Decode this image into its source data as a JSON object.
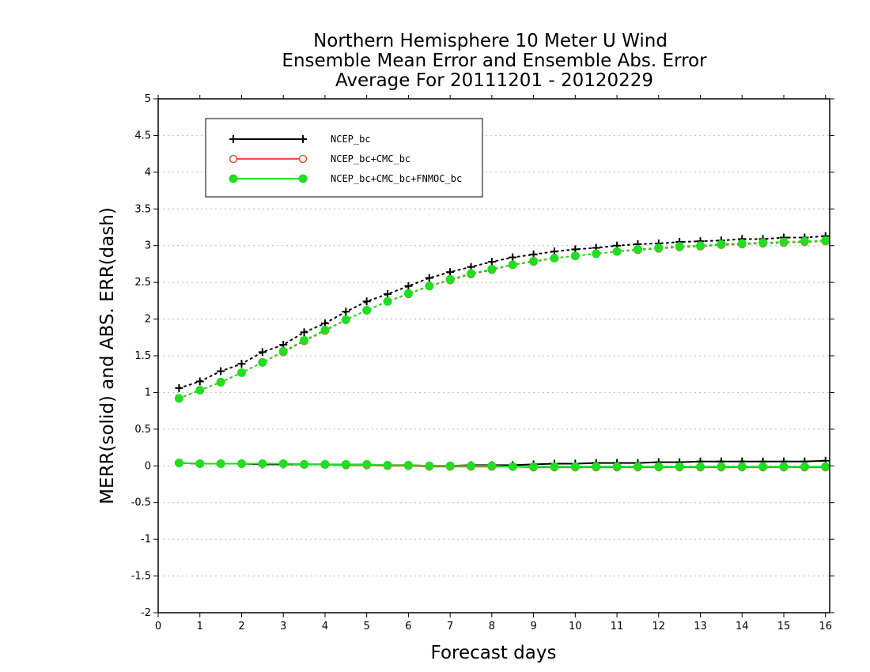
{
  "chart_data": {
    "type": "line",
    "title_lines": [
      "Northern Hemisphere 10 Meter U Wind",
      "Ensemble Mean Error and Ensemble Abs. Error",
      "Average For 20111201 - 20120229"
    ],
    "xlabel": "Forecast days",
    "ylabel": "MERR(solid) and ABS. ERR(dash)",
    "xlim": [
      0,
      16.1
    ],
    "ylim": [
      -2,
      5
    ],
    "xticks": [
      0,
      1,
      2,
      3,
      4,
      5,
      6,
      7,
      8,
      9,
      10,
      11,
      12,
      13,
      14,
      15,
      16
    ],
    "yticks": [
      -2,
      -1.5,
      -1,
      -0.5,
      0,
      0.5,
      1,
      1.5,
      2,
      2.5,
      3,
      3.5,
      4,
      4.5,
      5
    ],
    "grid": true,
    "legend_position": "top-left",
    "x": [
      0.5,
      1,
      1.5,
      2,
      2.5,
      3,
      3.5,
      4,
      4.5,
      5,
      5.5,
      6,
      6.5,
      7,
      7.5,
      8,
      8.5,
      9,
      9.5,
      10,
      10.5,
      11,
      11.5,
      12,
      12.5,
      13,
      13.5,
      14,
      14.5,
      15,
      15.5,
      16
    ],
    "series": [
      {
        "name": "NCEP_bc",
        "color": "#000000",
        "marker": "plus",
        "merr": [
          0.04,
          0.03,
          0.03,
          0.03,
          0.02,
          0.02,
          0.02,
          0.02,
          0.01,
          0.01,
          0.01,
          0.01,
          0.0,
          0.0,
          0.01,
          0.01,
          0.01,
          0.02,
          0.03,
          0.03,
          0.04,
          0.04,
          0.04,
          0.05,
          0.05,
          0.06,
          0.06,
          0.06,
          0.06,
          0.06,
          0.06,
          0.07
        ],
        "abserr": [
          1.06,
          1.15,
          1.29,
          1.39,
          1.55,
          1.65,
          1.82,
          1.94,
          2.1,
          2.24,
          2.34,
          2.45,
          2.56,
          2.64,
          2.71,
          2.78,
          2.84,
          2.88,
          2.92,
          2.95,
          2.97,
          3.0,
          3.02,
          3.03,
          3.05,
          3.06,
          3.07,
          3.09,
          3.09,
          3.11,
          3.11,
          3.13
        ]
      },
      {
        "name": "NCEP_bc+CMC_bc",
        "color": "#e8503a",
        "marker": "open-circle",
        "merr": [
          0.04,
          0.03,
          0.03,
          0.03,
          0.03,
          0.03,
          0.02,
          0.02,
          0.01,
          0.01,
          0.0,
          0.0,
          -0.01,
          -0.01,
          -0.01,
          -0.01,
          -0.01,
          -0.02,
          -0.02,
          -0.02,
          -0.02,
          -0.02,
          -0.02,
          -0.02,
          -0.02,
          -0.02,
          -0.02,
          -0.02,
          -0.02,
          -0.02,
          -0.02,
          -0.02
        ],
        "abserr": [
          0.92,
          1.03,
          1.14,
          1.27,
          1.41,
          1.55,
          1.7,
          1.84,
          1.99,
          2.12,
          2.24,
          2.34,
          2.45,
          2.53,
          2.61,
          2.67,
          2.74,
          2.78,
          2.83,
          2.86,
          2.89,
          2.92,
          2.94,
          2.96,
          2.98,
          2.99,
          3.01,
          3.02,
          3.03,
          3.04,
          3.05,
          3.06
        ]
      },
      {
        "name": "NCEP_bc+CMC_bc+FNMOC_bc",
        "color": "#22dd22",
        "marker": "filled-circle",
        "merr": [
          0.04,
          0.03,
          0.03,
          0.03,
          0.03,
          0.03,
          0.02,
          0.02,
          0.02,
          0.02,
          0.01,
          0.01,
          0.0,
          0.0,
          0.0,
          0.0,
          -0.01,
          -0.01,
          -0.01,
          -0.01,
          -0.01,
          -0.01,
          -0.01,
          -0.01,
          -0.01,
          -0.01,
          -0.01,
          -0.01,
          -0.01,
          -0.01,
          -0.01,
          -0.01
        ],
        "abserr": [
          0.92,
          1.03,
          1.14,
          1.27,
          1.41,
          1.56,
          1.71,
          1.85,
          1.99,
          2.12,
          2.24,
          2.35,
          2.45,
          2.54,
          2.62,
          2.68,
          2.74,
          2.79,
          2.83,
          2.86,
          2.89,
          2.92,
          2.95,
          2.97,
          2.99,
          3.0,
          3.02,
          3.03,
          3.04,
          3.05,
          3.06,
          3.07
        ]
      }
    ]
  }
}
